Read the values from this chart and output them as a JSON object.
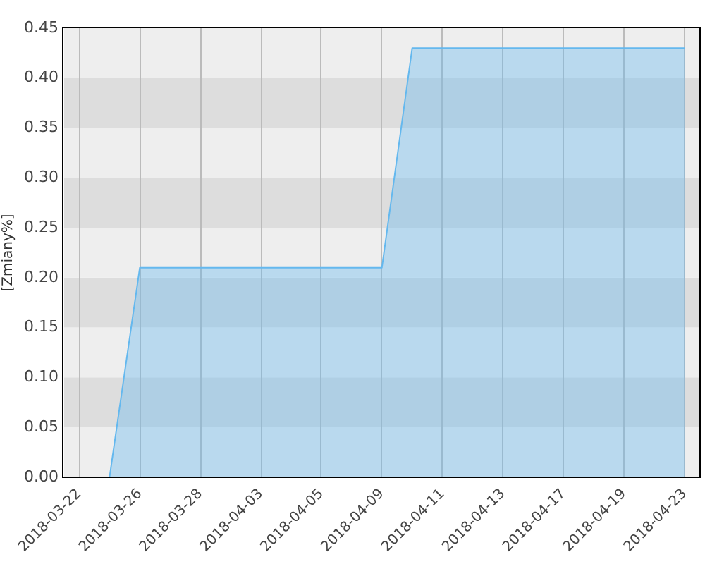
{
  "chart_data": {
    "type": "area",
    "ylabel": "[Zmiany%]",
    "categories": [
      "2018-03-22",
      null,
      "2018-03-26",
      null,
      "2018-03-28",
      null,
      "2018-04-03",
      null,
      "2018-04-05",
      null,
      "2018-04-09",
      null,
      "2018-04-11",
      null,
      "2018-04-13",
      null,
      "2018-04-17",
      null,
      "2018-04-19",
      null,
      "2018-04-23"
    ],
    "values": [
      null,
      0,
      0.21,
      0.21,
      0.21,
      0.21,
      0.21,
      0.21,
      0.21,
      0.21,
      0.21,
      0.43,
      0.43,
      0.43,
      0.43,
      0.43,
      0.43,
      0.43,
      0.43,
      0.43,
      0.43
    ],
    "color": "#64b8ee",
    "ylim": [
      0,
      0.45
    ],
    "yticks": [
      {
        "value": 0,
        "label": "0.00"
      },
      0.05,
      {
        "value": 0.1,
        "label": "0.10"
      },
      0.15,
      {
        "value": 0.2,
        "label": "0.20"
      },
      0.25,
      {
        "value": 0.3,
        "label": "0.30"
      },
      0.35,
      {
        "value": 0.4,
        "label": "0.40"
      },
      0.45
    ],
    "grid": true
  }
}
